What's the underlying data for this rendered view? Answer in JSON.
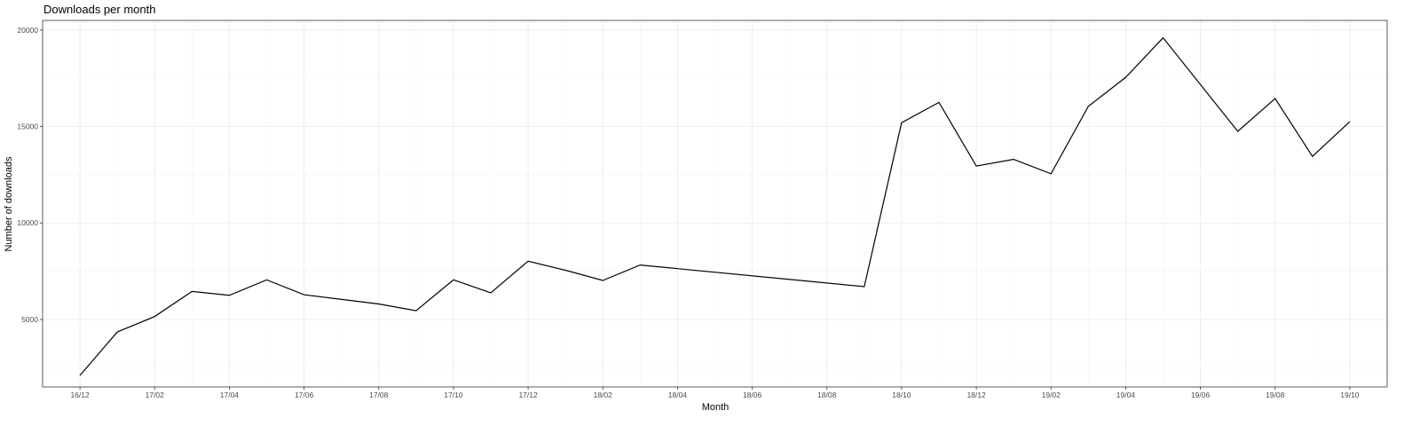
{
  "chart_data": {
    "type": "line",
    "title": "Downloads per month",
    "xlabel": "Month",
    "ylabel": "Number of downloads",
    "x_tick_labels": [
      "16/12",
      "17/02",
      "17/04",
      "17/06",
      "17/08",
      "17/10",
      "17/12",
      "18/02",
      "18/04",
      "18/06",
      "18/08",
      "18/10",
      "18/12",
      "19/02",
      "19/04",
      "19/06",
      "19/08",
      "19/10"
    ],
    "y_ticks": [
      5000,
      10000,
      15000,
      20000
    ],
    "xlim": [
      "2016-11",
      "2019-11"
    ],
    "ylim": [
      1500,
      20500
    ],
    "grid": true,
    "legend": "none",
    "series": [
      {
        "color": "#000000",
        "points": [
          {
            "x": "2016-12",
            "y": 2100
          },
          {
            "x": "2017-01",
            "y": 4350
          },
          {
            "x": "2017-02",
            "y": 5150
          },
          {
            "x": "2017-03",
            "y": 6450
          },
          {
            "x": "2017-04",
            "y": 6250
          },
          {
            "x": "2017-05",
            "y": 7050
          },
          {
            "x": "2017-06",
            "y": 6280
          },
          {
            "x": "2017-08",
            "y": 5800
          },
          {
            "x": "2017-09",
            "y": 5450
          },
          {
            "x": "2017-10",
            "y": 7050
          },
          {
            "x": "2017-11",
            "y": 6380
          },
          {
            "x": "2017-12",
            "y": 8020
          },
          {
            "x": "2018-01",
            "y": 7550
          },
          {
            "x": "2018-02",
            "y": 7020
          },
          {
            "x": "2018-03",
            "y": 7820
          },
          {
            "x": "2018-09",
            "y": 6700
          },
          {
            "x": "2018-10",
            "y": 15200
          },
          {
            "x": "2018-11",
            "y": 16250
          },
          {
            "x": "2018-12",
            "y": 12950
          },
          {
            "x": "2019-01",
            "y": 13300
          },
          {
            "x": "2019-02",
            "y": 12550
          },
          {
            "x": "2019-03",
            "y": 16050
          },
          {
            "x": "2019-04",
            "y": 17550
          },
          {
            "x": "2019-05",
            "y": 19600
          },
          {
            "x": "2019-07",
            "y": 14750
          },
          {
            "x": "2019-08",
            "y": 16450
          },
          {
            "x": "2019-09",
            "y": 13450
          },
          {
            "x": "2019-10",
            "y": 15250
          }
        ]
      }
    ]
  }
}
